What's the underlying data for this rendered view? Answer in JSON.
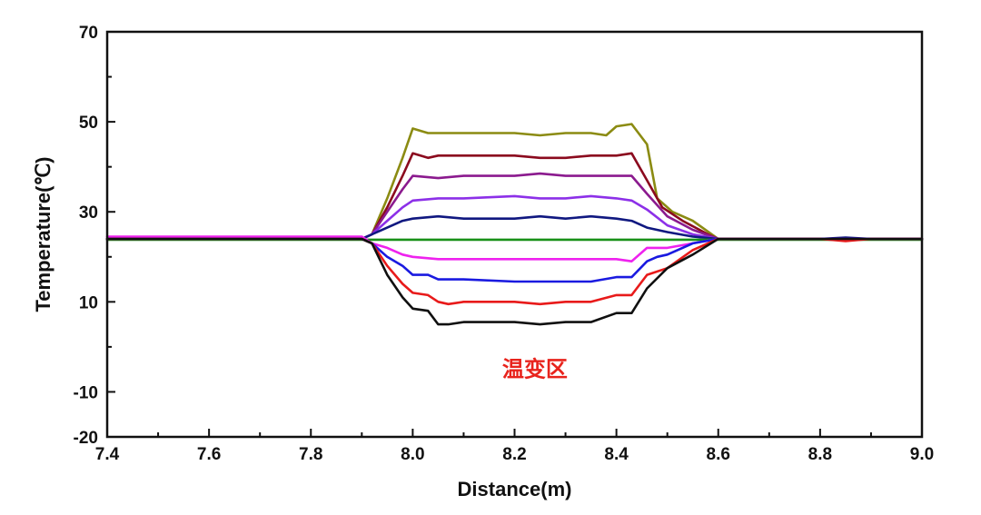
{
  "chart_data": {
    "type": "line",
    "xlabel": "Distance(m)",
    "ylabel": "Temperature(℃)",
    "xlim": [
      7.4,
      9.0
    ],
    "ylim": [
      -20,
      70
    ],
    "x_ticks": [
      "7.4",
      "7.6",
      "7.8",
      "8.0",
      "8.2",
      "8.4",
      "8.6",
      "8.8",
      "9.0"
    ],
    "y_ticks": [
      "-20",
      "-10",
      "10",
      "30",
      "50",
      "70"
    ],
    "annotation": "温变区",
    "annotation_at": {
      "x": 8.24,
      "y": -5
    },
    "grid": false,
    "legend": "none",
    "series": [
      {
        "color": "#8b8b12",
        "x": [
          7.4,
          7.5,
          7.6,
          7.7,
          7.8,
          7.85,
          7.9,
          7.92,
          7.95,
          7.98,
          8.0,
          8.03,
          8.1,
          8.2,
          8.25,
          8.3,
          8.35,
          8.38,
          8.4,
          8.43,
          8.46,
          8.48,
          8.51,
          8.55,
          8.6,
          8.7,
          8.8,
          8.9,
          9.0
        ],
        "y": [
          24,
          24.2,
          24,
          24.2,
          24,
          24,
          24,
          25,
          33,
          42,
          48.5,
          47.5,
          47.5,
          47.5,
          47,
          47.5,
          47.5,
          47,
          49,
          49.5,
          45,
          33,
          30,
          28,
          24,
          24,
          24,
          24,
          24
        ]
      },
      {
        "color": "#8b0a1e",
        "x": [
          7.4,
          7.5,
          7.6,
          7.7,
          7.8,
          7.85,
          7.9,
          7.92,
          7.95,
          7.98,
          8.0,
          8.03,
          8.05,
          8.1,
          8.2,
          8.25,
          8.3,
          8.35,
          8.38,
          8.4,
          8.43,
          8.46,
          8.49,
          8.53,
          8.58,
          8.6,
          8.7,
          8.8,
          9.0
        ],
        "y": [
          24,
          24,
          24,
          24,
          24,
          24,
          24,
          25,
          31,
          38,
          43,
          42,
          42.5,
          42.5,
          42.5,
          42,
          42,
          42.5,
          42.5,
          42.5,
          43,
          37,
          31,
          28,
          25,
          24,
          24,
          24,
          24
        ]
      },
      {
        "color": "#8b1a8e",
        "x": [
          7.4,
          7.5,
          7.6,
          7.7,
          7.8,
          7.85,
          7.9,
          7.92,
          7.95,
          7.98,
          8.0,
          8.05,
          8.1,
          8.2,
          8.25,
          8.3,
          8.35,
          8.4,
          8.43,
          8.46,
          8.5,
          8.55,
          8.6,
          8.7,
          8.8,
          9.0
        ],
        "y": [
          24,
          24,
          24,
          24,
          24,
          24,
          24,
          25,
          30,
          35,
          38,
          37.5,
          38,
          38,
          38.5,
          38,
          38,
          38,
          38,
          34,
          29,
          26,
          24,
          24,
          24,
          24
        ]
      },
      {
        "color": "#8c30e8",
        "x": [
          7.4,
          7.5,
          7.6,
          7.7,
          7.8,
          7.85,
          7.9,
          7.92,
          7.95,
          7.98,
          8.0,
          8.05,
          8.1,
          8.2,
          8.25,
          8.3,
          8.35,
          8.4,
          8.43,
          8.46,
          8.5,
          8.55,
          8.6,
          8.7,
          8.8,
          9.0
        ],
        "y": [
          24,
          24,
          24,
          24,
          24,
          24,
          24,
          25,
          28,
          31,
          32.5,
          33,
          33,
          33.5,
          33,
          33,
          33.5,
          33,
          32.5,
          30.5,
          27,
          25,
          24,
          24,
          24,
          24
        ]
      },
      {
        "color": "#101880",
        "x": [
          7.4,
          7.5,
          7.6,
          7.7,
          7.8,
          7.85,
          7.9,
          7.92,
          7.95,
          7.98,
          8.0,
          8.05,
          8.1,
          8.2,
          8.25,
          8.3,
          8.35,
          8.4,
          8.43,
          8.46,
          8.5,
          8.55,
          8.6,
          8.7,
          8.8,
          8.85,
          8.9,
          9.0
        ],
        "y": [
          24,
          24.3,
          24,
          24,
          24,
          24,
          24,
          25,
          26.5,
          28,
          28.5,
          29,
          28.5,
          28.5,
          29,
          28.5,
          29,
          28.5,
          28,
          26.5,
          25.5,
          24.5,
          24,
          24,
          24,
          24.3,
          24,
          24
        ]
      },
      {
        "color": "#189018",
        "x": [
          7.4,
          7.6,
          7.8,
          8.0,
          8.2,
          8.4,
          8.6,
          8.8,
          9.0
        ],
        "y": [
          23.8,
          23.8,
          23.8,
          23.8,
          23.8,
          23.8,
          23.8,
          23.8,
          23.8
        ]
      },
      {
        "color": "#ee22ee",
        "x": [
          7.4,
          7.5,
          7.6,
          7.7,
          7.8,
          7.85,
          7.9,
          7.92,
          7.95,
          7.98,
          8.0,
          8.05,
          8.1,
          8.2,
          8.25,
          8.3,
          8.35,
          8.4,
          8.43,
          8.46,
          8.5,
          8.55,
          8.6,
          8.7,
          8.8,
          9.0
        ],
        "y": [
          24.5,
          24.5,
          24.5,
          24.5,
          24.5,
          24.5,
          24.5,
          23,
          22,
          20.5,
          20,
          19.5,
          19.5,
          19.5,
          19.5,
          19.5,
          19.5,
          19.5,
          19,
          22,
          22,
          23,
          24,
          24,
          24,
          24
        ]
      },
      {
        "color": "#1a1ae0",
        "x": [
          7.4,
          7.5,
          7.6,
          7.7,
          7.8,
          7.85,
          7.9,
          7.92,
          7.95,
          7.98,
          8.0,
          8.03,
          8.05,
          8.1,
          8.2,
          8.25,
          8.3,
          8.35,
          8.4,
          8.43,
          8.46,
          8.48,
          8.5,
          8.55,
          8.6,
          8.7,
          8.8,
          9.0
        ],
        "y": [
          24,
          24,
          24,
          24,
          24,
          24,
          24,
          23,
          20,
          18,
          16,
          16,
          15,
          15,
          14.5,
          14.5,
          14.5,
          14.5,
          15.5,
          15.5,
          19,
          20,
          20.5,
          23,
          24,
          24,
          24,
          24
        ]
      },
      {
        "color": "#e81a1a",
        "x": [
          7.4,
          7.5,
          7.6,
          7.7,
          7.8,
          7.85,
          7.9,
          7.92,
          7.95,
          7.98,
          8.0,
          8.03,
          8.05,
          8.07,
          8.1,
          8.2,
          8.25,
          8.3,
          8.35,
          8.4,
          8.43,
          8.46,
          8.5,
          8.55,
          8.6,
          8.7,
          8.8,
          8.85,
          8.9,
          9.0
        ],
        "y": [
          24,
          24,
          24,
          24,
          24,
          24,
          24,
          23,
          18,
          14,
          12,
          11.5,
          10,
          9.5,
          10,
          10,
          9.5,
          10,
          10,
          11.5,
          11.5,
          16,
          17.5,
          21.5,
          24,
          24,
          24,
          23.5,
          24,
          24
        ]
      },
      {
        "color": "#101010",
        "x": [
          7.4,
          7.5,
          7.6,
          7.7,
          7.8,
          7.85,
          7.9,
          7.92,
          7.95,
          7.98,
          8.0,
          8.03,
          8.05,
          8.07,
          8.1,
          8.2,
          8.25,
          8.3,
          8.35,
          8.4,
          8.43,
          8.46,
          8.5,
          8.55,
          8.6,
          8.7,
          8.8,
          9.0
        ],
        "y": [
          24,
          24,
          24,
          24,
          24,
          24,
          24,
          23,
          16,
          11,
          8.5,
          8,
          5,
          5,
          5.5,
          5.5,
          5,
          5.5,
          5.5,
          7.5,
          7.5,
          13,
          17.5,
          20.5,
          24,
          24,
          24,
          24
        ]
      }
    ]
  }
}
